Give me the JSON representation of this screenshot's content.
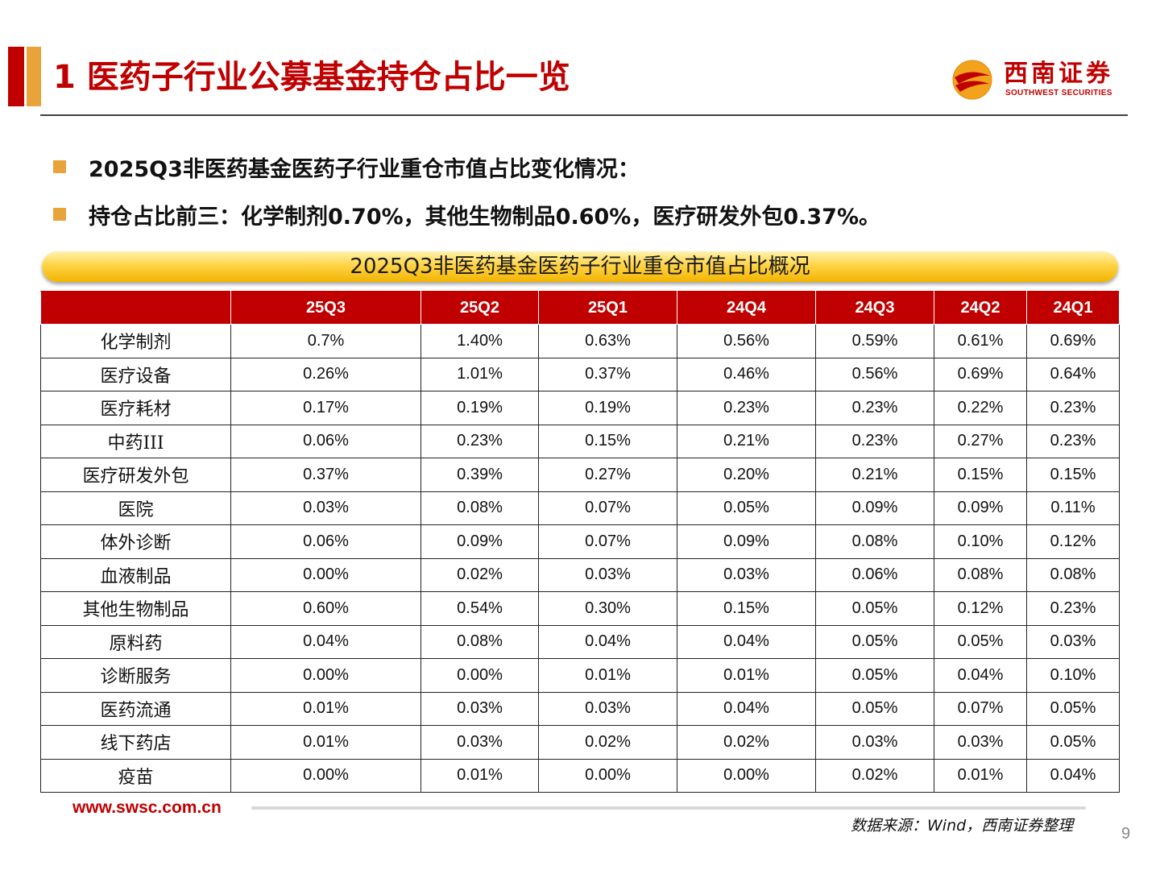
{
  "header": {
    "title": "1 医药子行业公募基金持仓占比一览",
    "logo_cn": "西南证券",
    "logo_en": "SOUTHWEST SECURITIES",
    "accent_red": "#c00000",
    "accent_orange": "#e8a33a"
  },
  "bullets": [
    "2025Q3非医药基金医药子行业重仓市值占比变化情况：",
    "持仓占比前三：化学制剂0.70%，其他生物制品0.60%，医疗研发外包0.37%。"
  ],
  "table": {
    "caption": "2025Q3非医药基金医药子行业重仓市值占比概况",
    "columns": [
      "",
      "25Q3",
      "25Q2",
      "25Q1",
      "24Q4",
      "24Q3",
      "24Q2",
      "24Q1"
    ],
    "rows": [
      [
        "化学制剂",
        "0.7%",
        "1.40%",
        "0.63%",
        "0.56%",
        "0.59%",
        "0.61%",
        "0.69%"
      ],
      [
        "医疗设备",
        "0.26%",
        "1.01%",
        "0.37%",
        "0.46%",
        "0.56%",
        "0.69%",
        "0.64%"
      ],
      [
        "医疗耗材",
        "0.17%",
        "0.19%",
        "0.19%",
        "0.23%",
        "0.23%",
        "0.22%",
        "0.23%"
      ],
      [
        "中药III",
        "0.06%",
        "0.23%",
        "0.15%",
        "0.21%",
        "0.23%",
        "0.27%",
        "0.23%"
      ],
      [
        "医疗研发外包",
        "0.37%",
        "0.39%",
        "0.27%",
        "0.20%",
        "0.21%",
        "0.15%",
        "0.15%"
      ],
      [
        "医院",
        "0.03%",
        "0.08%",
        "0.07%",
        "0.05%",
        "0.09%",
        "0.09%",
        "0.11%"
      ],
      [
        "体外诊断",
        "0.06%",
        "0.09%",
        "0.07%",
        "0.09%",
        "0.08%",
        "0.10%",
        "0.12%"
      ],
      [
        "血液制品",
        "0.00%",
        "0.02%",
        "0.03%",
        "0.03%",
        "0.06%",
        "0.08%",
        "0.08%"
      ],
      [
        "其他生物制品",
        "0.60%",
        "0.54%",
        "0.30%",
        "0.15%",
        "0.05%",
        "0.12%",
        "0.23%"
      ],
      [
        "原料药",
        "0.04%",
        "0.08%",
        "0.04%",
        "0.04%",
        "0.05%",
        "0.05%",
        "0.03%"
      ],
      [
        "诊断服务",
        "0.00%",
        "0.00%",
        "0.01%",
        "0.01%",
        "0.05%",
        "0.04%",
        "0.10%"
      ],
      [
        "医药流通",
        "0.01%",
        "0.03%",
        "0.03%",
        "0.04%",
        "0.05%",
        "0.07%",
        "0.05%"
      ],
      [
        "线下药店",
        "0.01%",
        "0.03%",
        "0.02%",
        "0.02%",
        "0.03%",
        "0.03%",
        "0.05%"
      ],
      [
        "疫苗",
        "0.00%",
        "0.01%",
        "0.00%",
        "0.00%",
        "0.02%",
        "0.01%",
        "0.04%"
      ]
    ]
  },
  "footer": {
    "url": "www.swsc.com.cn",
    "source": "数据来源：Wind，西南证券整理",
    "page_number": "9"
  }
}
